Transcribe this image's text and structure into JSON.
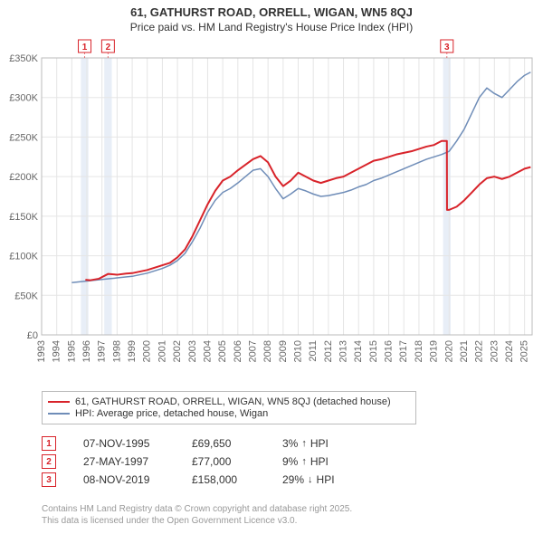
{
  "title": {
    "main": "61, GATHURST ROAD, ORRELL, WIGAN, WN5 8QJ",
    "sub": "Price paid vs. HM Land Registry's House Price Index (HPI)"
  },
  "chart": {
    "type": "line",
    "background_color": "#ffffff",
    "plot_border_color": "#bbbbbb",
    "grid_color": "#e5e5e5",
    "highlight_band_color": "#e8eef7",
    "axis_text_color": "#666666",
    "axis_fontsize": 11,
    "x": {
      "min": 1993,
      "max": 2025.5,
      "ticks": [
        1993,
        1994,
        1995,
        1996,
        1997,
        1998,
        1999,
        2000,
        2001,
        2002,
        2003,
        2004,
        2005,
        2006,
        2007,
        2008,
        2009,
        2010,
        2011,
        2012,
        2013,
        2014,
        2015,
        2016,
        2017,
        2018,
        2019,
        2020,
        2021,
        2022,
        2023,
        2024,
        2025
      ]
    },
    "y": {
      "min": 0,
      "max": 350000,
      "ticks": [
        0,
        50000,
        100000,
        150000,
        200000,
        250000,
        300000,
        350000
      ],
      "tick_labels": [
        "£0",
        "£50K",
        "£100K",
        "£150K",
        "£200K",
        "£250K",
        "£300K",
        "£350K"
      ]
    },
    "series": [
      {
        "name": "price_paid",
        "color": "#d8232a",
        "width": 2,
        "points": [
          [
            1995.9,
            69650
          ],
          [
            1996.2,
            69000
          ],
          [
            1996.8,
            71000
          ],
          [
            1997.4,
            77000
          ],
          [
            1998.0,
            76000
          ],
          [
            1998.6,
            77500
          ],
          [
            1999.0,
            78000
          ],
          [
            1999.5,
            80000
          ],
          [
            2000.0,
            82000
          ],
          [
            2000.5,
            85000
          ],
          [
            2001.0,
            88000
          ],
          [
            2001.5,
            91000
          ],
          [
            2002.0,
            98000
          ],
          [
            2002.5,
            108000
          ],
          [
            2003.0,
            125000
          ],
          [
            2003.5,
            145000
          ],
          [
            2004.0,
            165000
          ],
          [
            2004.5,
            182000
          ],
          [
            2005.0,
            195000
          ],
          [
            2005.5,
            200000
          ],
          [
            2006.0,
            208000
          ],
          [
            2006.5,
            215000
          ],
          [
            2007.0,
            222000
          ],
          [
            2007.5,
            226000
          ],
          [
            2008.0,
            218000
          ],
          [
            2008.5,
            200000
          ],
          [
            2009.0,
            188000
          ],
          [
            2009.5,
            195000
          ],
          [
            2010.0,
            205000
          ],
          [
            2010.5,
            200000
          ],
          [
            2011.0,
            195000
          ],
          [
            2011.5,
            192000
          ],
          [
            2012.0,
            195000
          ],
          [
            2012.5,
            198000
          ],
          [
            2013.0,
            200000
          ],
          [
            2013.5,
            205000
          ],
          [
            2014.0,
            210000
          ],
          [
            2014.5,
            215000
          ],
          [
            2015.0,
            220000
          ],
          [
            2015.5,
            222000
          ],
          [
            2016.0,
            225000
          ],
          [
            2016.5,
            228000
          ],
          [
            2017.0,
            230000
          ],
          [
            2017.5,
            232000
          ],
          [
            2018.0,
            235000
          ],
          [
            2018.5,
            238000
          ],
          [
            2019.0,
            240000
          ],
          [
            2019.5,
            245000
          ],
          [
            2019.85,
            245000
          ],
          [
            2019.86,
            158000
          ],
          [
            2020.0,
            158000
          ],
          [
            2020.5,
            162000
          ],
          [
            2021.0,
            170000
          ],
          [
            2021.5,
            180000
          ],
          [
            2022.0,
            190000
          ],
          [
            2022.5,
            198000
          ],
          [
            2023.0,
            200000
          ],
          [
            2023.5,
            197000
          ],
          [
            2024.0,
            200000
          ],
          [
            2024.5,
            205000
          ],
          [
            2025.0,
            210000
          ],
          [
            2025.4,
            212000
          ]
        ]
      },
      {
        "name": "hpi",
        "color": "#6f8db8",
        "width": 1.5,
        "points": [
          [
            1995.0,
            66000
          ],
          [
            1995.5,
            67000
          ],
          [
            1996.0,
            68000
          ],
          [
            1996.5,
            69000
          ],
          [
            1997.0,
            70000
          ],
          [
            1997.5,
            71000
          ],
          [
            1998.0,
            72000
          ],
          [
            1998.5,
            73000
          ],
          [
            1999.0,
            74000
          ],
          [
            1999.5,
            76000
          ],
          [
            2000.0,
            78000
          ],
          [
            2000.5,
            81000
          ],
          [
            2001.0,
            84000
          ],
          [
            2001.5,
            88000
          ],
          [
            2002.0,
            94000
          ],
          [
            2002.5,
            103000
          ],
          [
            2003.0,
            118000
          ],
          [
            2003.5,
            135000
          ],
          [
            2004.0,
            155000
          ],
          [
            2004.5,
            170000
          ],
          [
            2005.0,
            180000
          ],
          [
            2005.5,
            185000
          ],
          [
            2006.0,
            192000
          ],
          [
            2006.5,
            200000
          ],
          [
            2007.0,
            208000
          ],
          [
            2007.5,
            210000
          ],
          [
            2008.0,
            200000
          ],
          [
            2008.5,
            185000
          ],
          [
            2009.0,
            172000
          ],
          [
            2009.5,
            178000
          ],
          [
            2010.0,
            185000
          ],
          [
            2010.5,
            182000
          ],
          [
            2011.0,
            178000
          ],
          [
            2011.5,
            175000
          ],
          [
            2012.0,
            176000
          ],
          [
            2012.5,
            178000
          ],
          [
            2013.0,
            180000
          ],
          [
            2013.5,
            183000
          ],
          [
            2014.0,
            187000
          ],
          [
            2014.5,
            190000
          ],
          [
            2015.0,
            195000
          ],
          [
            2015.5,
            198000
          ],
          [
            2016.0,
            202000
          ],
          [
            2016.5,
            206000
          ],
          [
            2017.0,
            210000
          ],
          [
            2017.5,
            214000
          ],
          [
            2018.0,
            218000
          ],
          [
            2018.5,
            222000
          ],
          [
            2019.0,
            225000
          ],
          [
            2019.5,
            228000
          ],
          [
            2020.0,
            232000
          ],
          [
            2020.5,
            245000
          ],
          [
            2021.0,
            260000
          ],
          [
            2021.5,
            280000
          ],
          [
            2022.0,
            300000
          ],
          [
            2022.5,
            312000
          ],
          [
            2023.0,
            305000
          ],
          [
            2023.5,
            300000
          ],
          [
            2024.0,
            310000
          ],
          [
            2024.5,
            320000
          ],
          [
            2025.0,
            328000
          ],
          [
            2025.4,
            332000
          ]
        ]
      }
    ],
    "sale_markers": [
      {
        "n": "1",
        "x": 1995.85,
        "color": "#d8232a"
      },
      {
        "n": "2",
        "x": 1997.4,
        "color": "#d8232a"
      },
      {
        "n": "3",
        "x": 2019.85,
        "color": "#d8232a"
      }
    ]
  },
  "legend": {
    "items": [
      {
        "color": "#d8232a",
        "label": "61, GATHURST ROAD, ORRELL, WIGAN, WN5 8QJ (detached house)"
      },
      {
        "color": "#6f8db8",
        "label": "HPI: Average price, detached house, Wigan"
      }
    ]
  },
  "sales": [
    {
      "n": "1",
      "color": "#d8232a",
      "date": "07-NOV-1995",
      "price": "£69,650",
      "delta_pct": "3%",
      "delta_dir": "up",
      "delta_label": "HPI"
    },
    {
      "n": "2",
      "color": "#d8232a",
      "date": "27-MAY-1997",
      "price": "£77,000",
      "delta_pct": "9%",
      "delta_dir": "up",
      "delta_label": "HPI"
    },
    {
      "n": "3",
      "color": "#d8232a",
      "date": "08-NOV-2019",
      "price": "£158,000",
      "delta_pct": "29%",
      "delta_dir": "down",
      "delta_label": "HPI"
    }
  ],
  "footer": {
    "line1": "Contains HM Land Registry data © Crown copyright and database right 2025.",
    "line2": "This data is licensed under the Open Government Licence v3.0."
  }
}
